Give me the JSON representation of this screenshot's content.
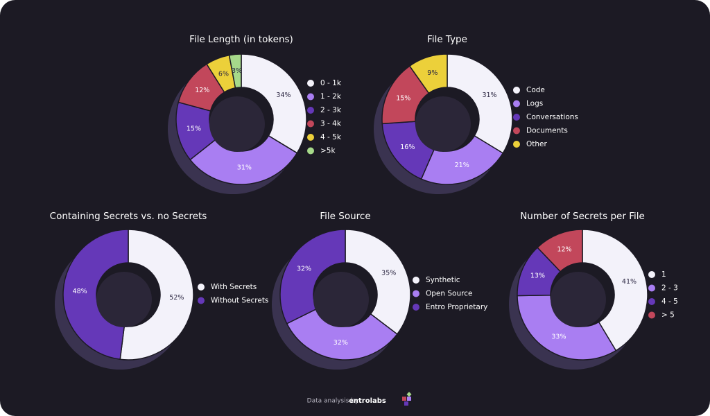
{
  "chart_data": [
    {
      "type": "donut",
      "title": "File Length (in tokens)",
      "categories": [
        "0 - 1k",
        "1 - 2k",
        "2 - 3k",
        "3 - 4k",
        "4 - 5k",
        ">5k"
      ],
      "values": [
        34,
        31,
        15,
        12,
        6,
        3
      ],
      "value_labels": [
        "34%",
        "31%",
        "15%",
        "12%",
        "6%",
        "3%"
      ],
      "colors": [
        "#f3f2fa",
        "#a97ef2",
        "#6538b8",
        "#c2475b",
        "#ecd03a",
        "#a6d98a"
      ]
    },
    {
      "type": "donut",
      "title": "File Type",
      "categories": [
        "Code",
        "Logs",
        "Conversations",
        "Documents",
        "Other"
      ],
      "values": [
        31,
        21,
        16,
        15,
        9
      ],
      "value_labels": [
        "31%",
        "21%",
        "16%",
        "15%",
        "9%"
      ],
      "colors": [
        "#f3f2fa",
        "#a97ef2",
        "#6538b8",
        "#c2475b",
        "#ecd03a"
      ]
    },
    {
      "type": "donut",
      "title": "Containing Secrets vs. no Secrets",
      "categories": [
        "With Secrets",
        "Without Secrets"
      ],
      "values": [
        52,
        48
      ],
      "value_labels": [
        "52%",
        "48%"
      ],
      "colors": [
        "#f3f2fa",
        "#6538b8"
      ]
    },
    {
      "type": "donut",
      "title": "File Source",
      "categories": [
        "Synthetic",
        "Open Source",
        "Entro Proprietary"
      ],
      "values": [
        35,
        32,
        32
      ],
      "value_labels": [
        "35%",
        "32%",
        "32%"
      ],
      "colors": [
        "#f3f2fa",
        "#a97ef2",
        "#6538b8"
      ]
    },
    {
      "type": "donut",
      "title": "Number of Secrets per File",
      "categories": [
        "1",
        "2 - 3",
        "4 - 5",
        "> 5"
      ],
      "values": [
        41,
        33,
        13,
        12
      ],
      "value_labels": [
        "41%",
        "33%",
        "13%",
        "12%"
      ],
      "colors": [
        "#f3f2fa",
        "#a97ef2",
        "#6538b8",
        "#c2475b"
      ]
    }
  ],
  "footer": {
    "text": "Data analysis by",
    "brand": "entrolabs"
  }
}
